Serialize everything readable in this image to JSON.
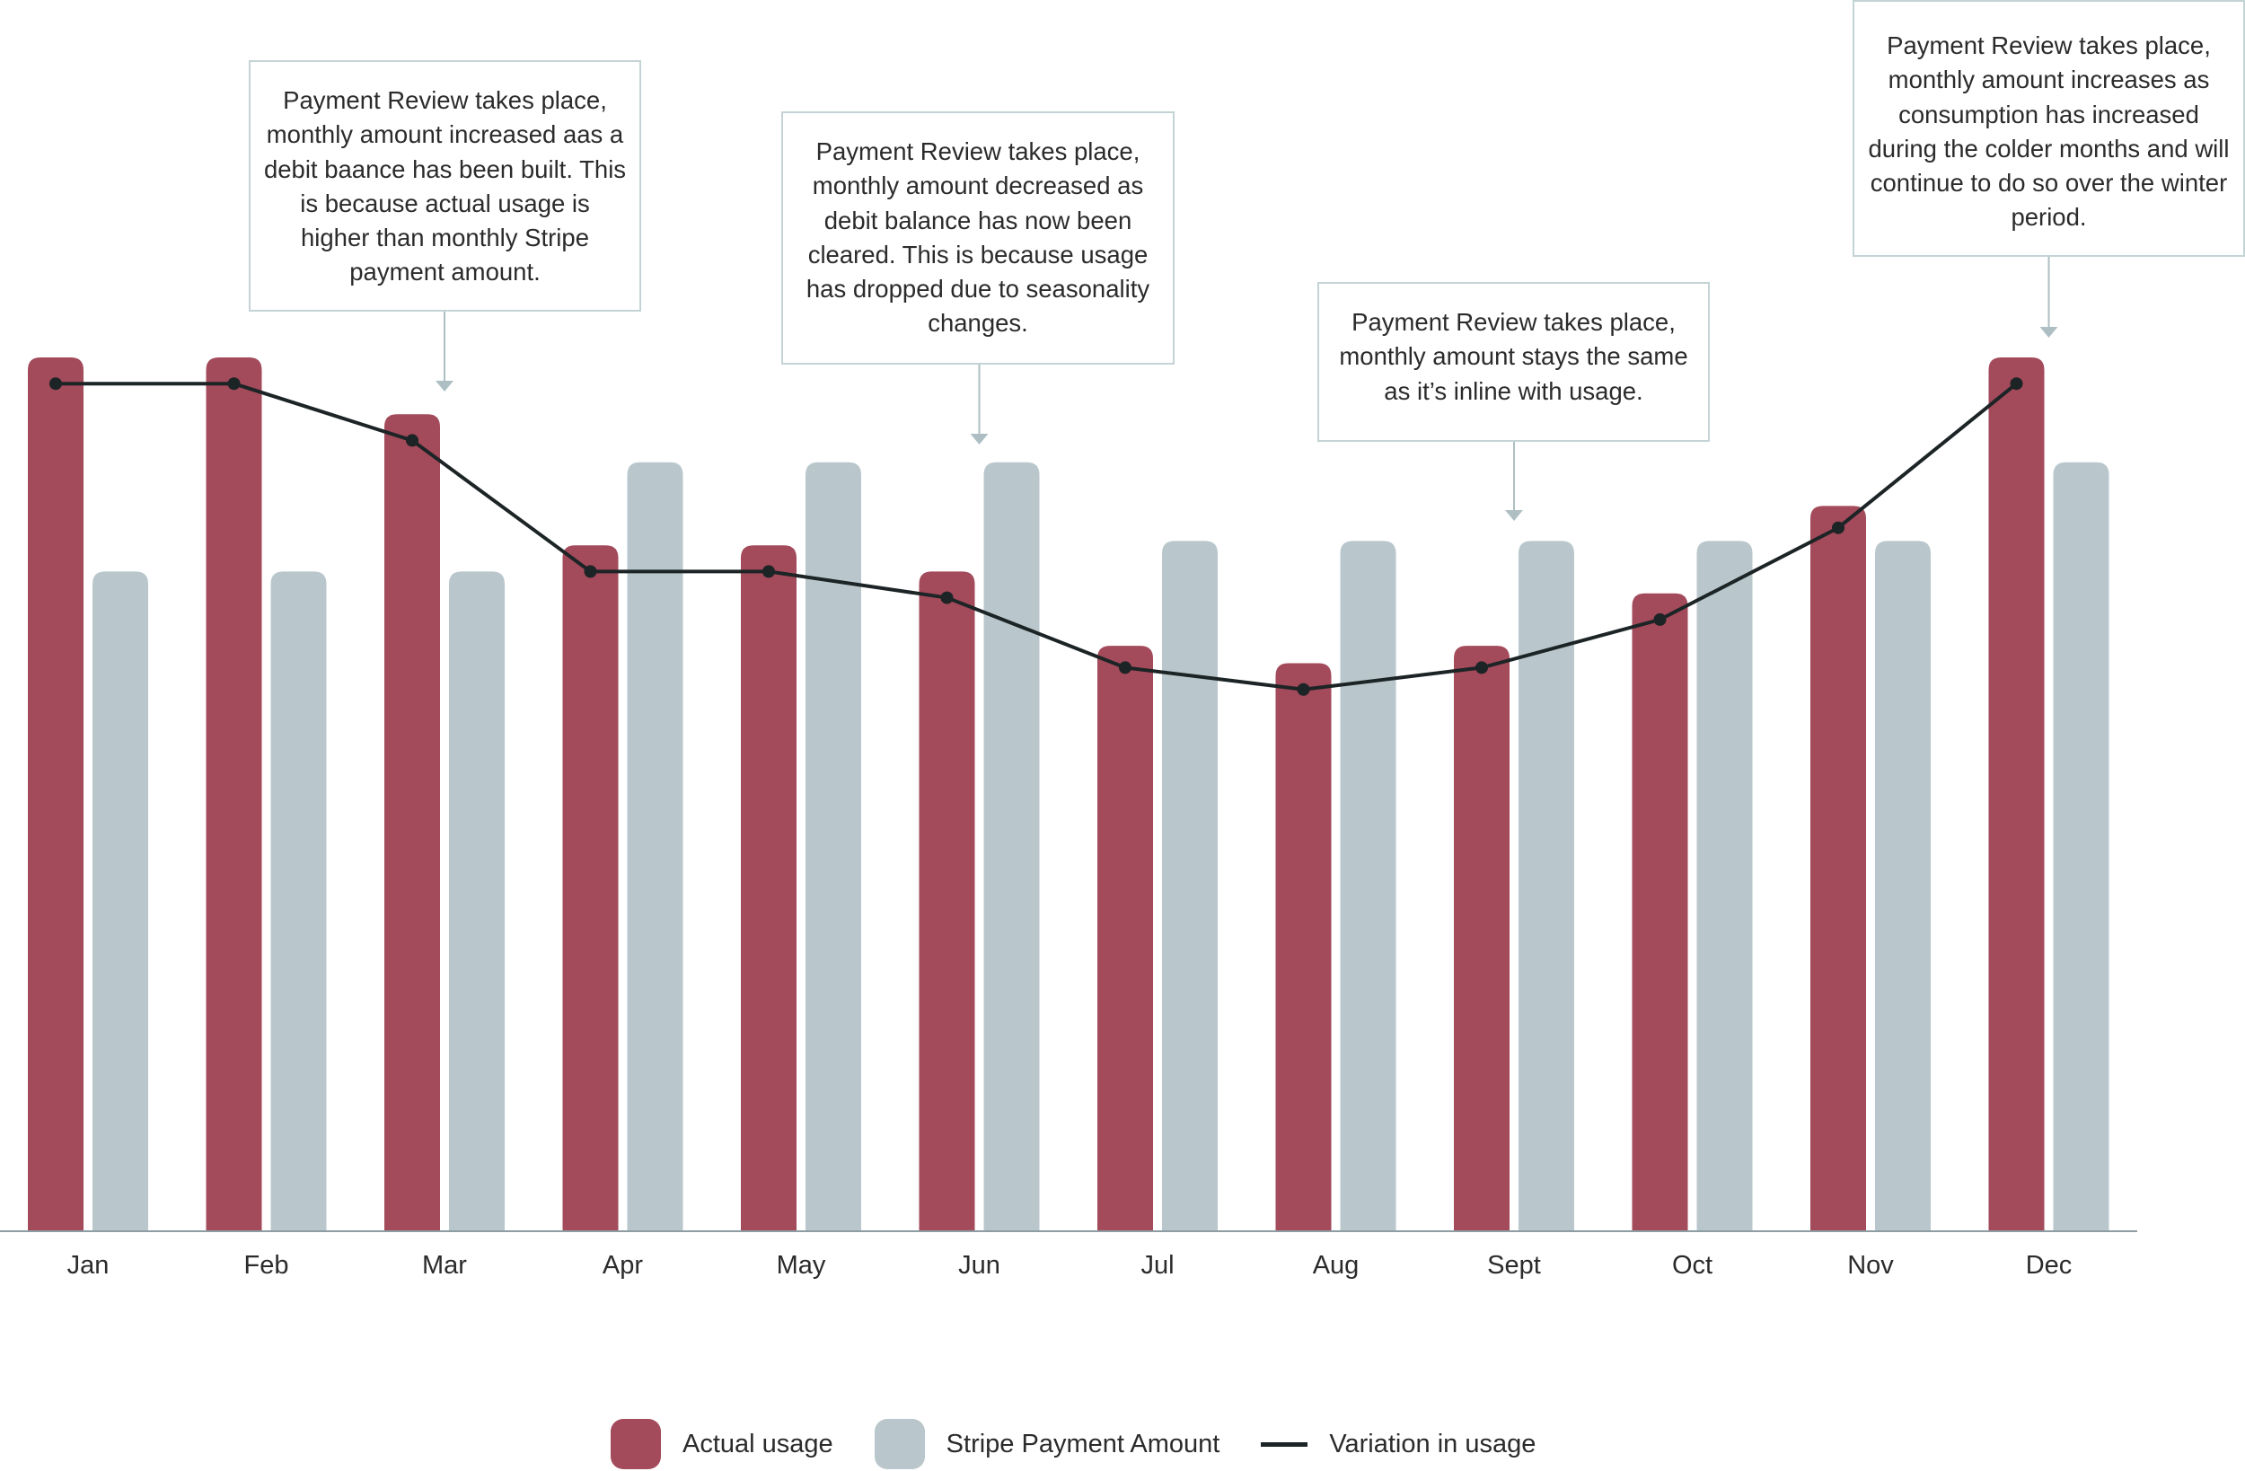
{
  "chart_data": {
    "type": "bar",
    "title": "",
    "xlabel": "",
    "ylabel": "",
    "ylim": [
      0,
      100
    ],
    "categories": [
      "Jan",
      "Feb",
      "Mar",
      "Apr",
      "May",
      "Jun",
      "Jul",
      "Aug",
      "Sept",
      "Oct",
      "Nov",
      "Dec"
    ],
    "series": [
      {
        "name": "Actual usage",
        "kind": "bar",
        "values": [
          100,
          100,
          93.5,
          78.5,
          78.5,
          75.5,
          67,
          65,
          67,
          73,
          83,
          100
        ]
      },
      {
        "name": "Stripe Payment Amount",
        "kind": "bar",
        "values": [
          75.5,
          75.5,
          75.5,
          88,
          88,
          88,
          79,
          79,
          79,
          79,
          79,
          88
        ]
      },
      {
        "name": "Variation in usage",
        "kind": "line",
        "values": [
          97,
          97,
          90.5,
          75.5,
          75.5,
          72.5,
          64.5,
          62,
          64.5,
          70,
          80.5,
          97
        ]
      }
    ],
    "colors": {
      "actual": "#a34a5b",
      "stripe": "#b9c7cc",
      "line": "#1c2426",
      "axis": "#8e9da3"
    },
    "annotations": [
      {
        "id": "mar",
        "category": "Mar",
        "text": "Payment Review takes place, monthly amount increased aas a debit baance has been built. This is because actual usage is higher than monthly Stripe payment amount."
      },
      {
        "id": "jun",
        "category": "Jun",
        "text": "Payment Review takes place, monthly amount decreased as debit balance has now been cleared. This is because usage has dropped due to seasonality changes."
      },
      {
        "id": "sep",
        "category": "Sept",
        "text": "Payment Review takes place, monthly amount stays the same as it’s inline with usage."
      },
      {
        "id": "dec",
        "category": "Dec",
        "text": "Payment Review takes place, monthly amount increases as consumption has increased during the colder months and will continue to do so over the winter period."
      }
    ]
  },
  "legend": {
    "actual_label": "Actual usage",
    "stripe_label": "Stripe Payment Amount",
    "line_label": "Variation in usage"
  }
}
